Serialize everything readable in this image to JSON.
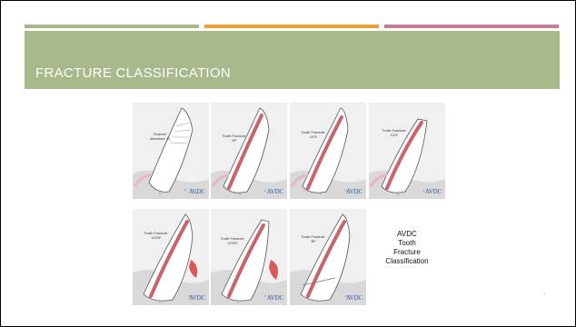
{
  "slide": {
    "title": "FRACTURE CLASSIFICATION",
    "caption": [
      "AVDC",
      "Tooth",
      "Fracture",
      "Classification"
    ],
    "page_number": "7"
  },
  "tiles": [
    {
      "label": [
        "Enamel",
        "Infraction: EI"
      ],
      "logo": "AVDC"
    },
    {
      "label": [
        "Tooth Fracture:",
        "EF"
      ],
      "logo": "AVDC"
    },
    {
      "label": [
        "Tooth Fracture:",
        "UCF"
      ],
      "logo": "AVDC"
    },
    {
      "label": [
        "Tooth Fracture:",
        "CCF"
      ],
      "logo": "AVDC"
    },
    {
      "label": [
        "Tooth Fracture:",
        "UCRF"
      ],
      "logo": "AVDC"
    },
    {
      "label": [
        "Tooth Fracture:",
        "CCRF"
      ],
      "logo": "AVDC"
    },
    {
      "label": [
        "Tooth Fracture:",
        "RF"
      ],
      "logo": "AVDC"
    }
  ],
  "colors": {
    "header": "#a8b98b",
    "bar_green": "#a7b98a",
    "bar_orange": "#e8a037",
    "bar_pink": "#c47e94",
    "pulp": "#c9646c"
  }
}
